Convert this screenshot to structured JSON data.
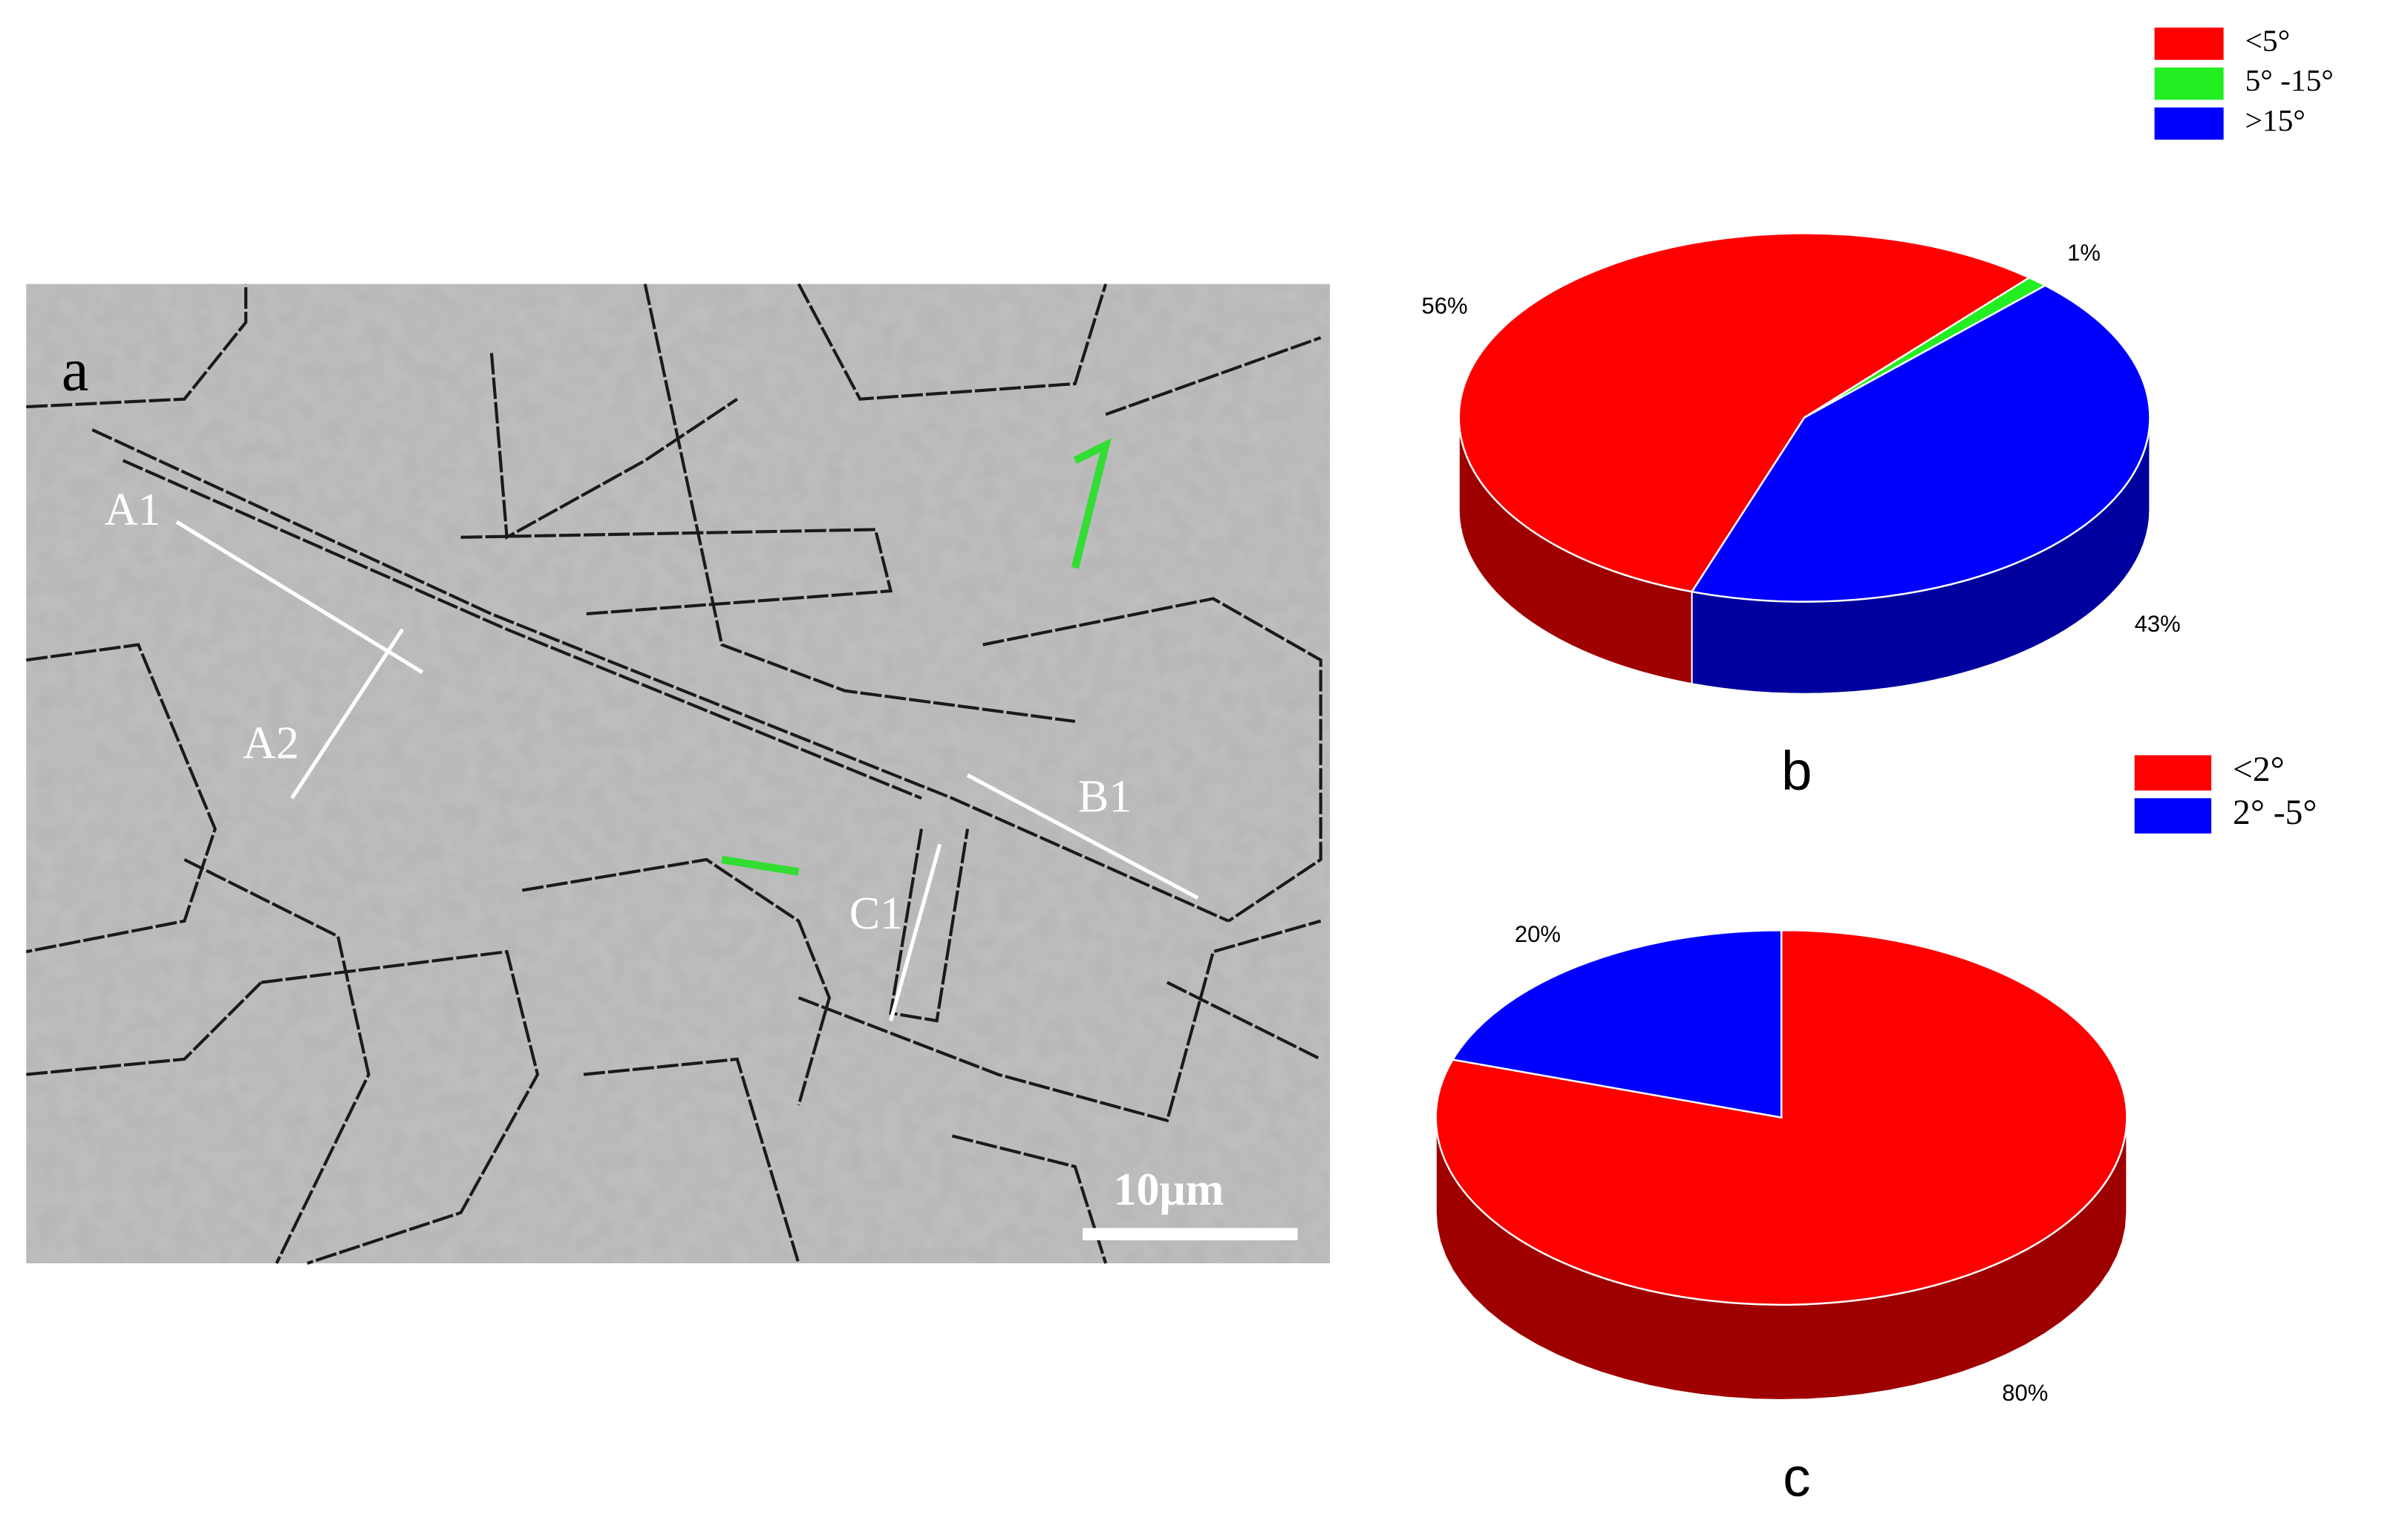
{
  "micrograph": {
    "panel_label": "a",
    "annotations": [
      "A1",
      "A2",
      "B1",
      "C1"
    ],
    "scale_bar": "10μm"
  },
  "chart_data": [
    {
      "type": "pie",
      "panel_label": "b",
      "categories": [
        "<5°",
        "5° -15°",
        ">15°"
      ],
      "values": [
        56,
        1,
        43
      ],
      "value_labels": [
        "56%",
        "1%",
        "43%"
      ],
      "colors": [
        "#ff0000",
        "#22ee22",
        "#0000ff"
      ]
    },
    {
      "type": "pie",
      "panel_label": "c",
      "categories": [
        "<2°",
        "2° -5°"
      ],
      "values": [
        80,
        20
      ],
      "value_labels": [
        "80%",
        "20%"
      ],
      "colors": [
        "#ff0000",
        "#0000ff"
      ]
    }
  ]
}
